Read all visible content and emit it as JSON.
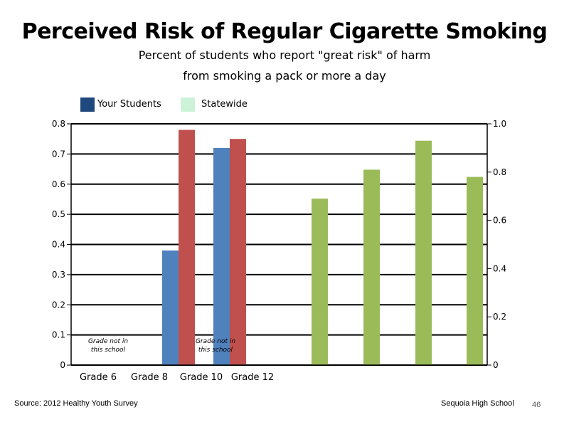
{
  "chart_data": {
    "type": "bar",
    "title": "Perceived Risk of Regular Cigarette Smoking",
    "subtitle": [
      "Percent of students who report \"great risk\" of harm",
      "from smoking a pack or more a day"
    ],
    "categories": [
      "Grade 6",
      "Grade 8",
      "Grade 10",
      "Grade 12"
    ],
    "series": [
      {
        "name": "Your Students",
        "values": [
          null,
          null,
          0.38,
          0.72
        ],
        "color": "#4f81bd",
        "axis": "left"
      },
      {
        "name": "Statewide",
        "values": [
          null,
          null,
          0.78,
          0.75
        ],
        "color": "#c0504d",
        "axis": "left"
      },
      {
        "name": "",
        "values": [
          0.69,
          0.81,
          0.93,
          0.78
        ],
        "color": "#9bbb59",
        "axis": "right"
      }
    ],
    "legend": [
      {
        "label": "Your Students",
        "color": "#1f497d"
      },
      {
        "label": "Statewide",
        "color": "#ccf2d8"
      }
    ],
    "ylim_left": [
      0,
      0.8
    ],
    "yticks_left": [
      "0",
      "0.1",
      "0.2",
      "0.3",
      "0.4",
      "0.5",
      "0.6",
      "0.7",
      "0.8"
    ],
    "ylim_right": [
      0,
      1.0
    ],
    "yticks_right": [
      "0",
      "0.2",
      "0.4",
      "0.6",
      "0.8",
      "1.0"
    ],
    "grid": true,
    "legend_position": "top-left",
    "annotations": [
      {
        "category": "Grade 6",
        "lines": [
          "Grade not in",
          "this school"
        ]
      },
      {
        "category": "Grade 10",
        "lines": [
          "Grade not in",
          "this school"
        ]
      }
    ]
  },
  "footer": {
    "source": "Source: 2012 Healthy Youth Survey",
    "school": "Sequoia High School",
    "page": "46"
  }
}
